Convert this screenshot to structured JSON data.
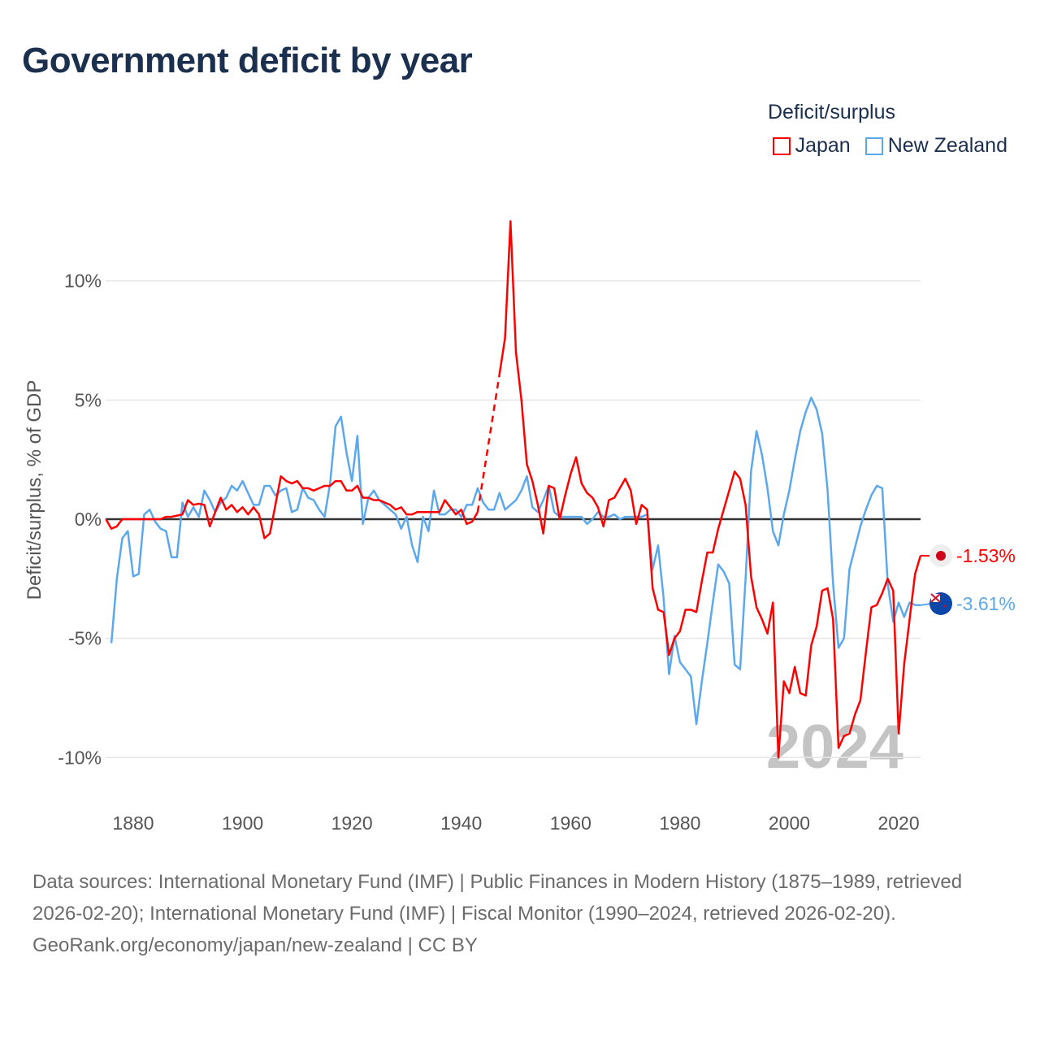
{
  "title": "Government deficit by year",
  "legend_title": "Deficit/surplus",
  "footer": {
    "sources": "Data sources: International Monetary Fund (IMF) | Public Finances in Modern History (1875–1989, retrieved 2026-02-20); International Monetary Fund (IMF) | Fiscal Monitor (1990–2024, retrieved 2026-02-20).",
    "credit": "GeoRank.org/economy/japan/new-zealand | CC BY"
  },
  "chart_data": {
    "type": "line",
    "title": "Government deficit by year",
    "ylabel": "Deficit/surplus, % of GDP",
    "xlabel": "",
    "xlim": [
      1875,
      2024
    ],
    "ylim": [
      -11.5,
      13
    ],
    "yticks": [
      10,
      5,
      0,
      -5,
      -10
    ],
    "ytick_labels": [
      "10%",
      "5%",
      "0%",
      "-5%",
      "-10%"
    ],
    "xticks": [
      1880,
      1900,
      1920,
      1940,
      1960,
      1980,
      2000,
      2020
    ],
    "xtick_labels": [
      "1880",
      "1900",
      "1920",
      "1940",
      "1960",
      "1980",
      "2000",
      "2020"
    ],
    "current_year_label": "2024",
    "grid": true,
    "legend_position": "top-right",
    "series": [
      {
        "name": "Japan",
        "color": "#ff0000",
        "start_year": 1875,
        "end_label": "-1.53%",
        "flag": "japan-flag",
        "values": [
          0,
          -0.4,
          -0.3,
          0,
          0,
          0,
          0,
          0,
          0,
          0,
          0,
          0.1,
          0.1,
          0.15,
          0.2,
          0.8,
          0.6,
          0.65,
          0.6,
          -0.3,
          0.3,
          0.9,
          0.4,
          0.6,
          0.3,
          0.5,
          0.2,
          0.5,
          0.2,
          -0.8,
          -0.6,
          0.6,
          1.8,
          1.6,
          1.5,
          1.6,
          1.3,
          1.3,
          1.2,
          1.3,
          1.4,
          1.4,
          1.6,
          1.6,
          1.2,
          1.2,
          1.4,
          0.9,
          0.9,
          0.8,
          0.8,
          0.7,
          0.6,
          0.4,
          0.5,
          0.2,
          0.2,
          0.3,
          0.3,
          0.3,
          0.3,
          0.3,
          0.8,
          0.5,
          0.2,
          0.4,
          -0.2,
          -0.1,
          0.3,
          null,
          null,
          null,
          6.1,
          7.6,
          12.5,
          7.0,
          5.0,
          2.3,
          1.6,
          0.6,
          -0.6,
          1.4,
          1.3,
          0,
          1.0,
          1.9,
          2.6,
          1.5,
          1.1,
          0.9,
          0.5,
          -0.3,
          0.8,
          0.9,
          1.3,
          1.7,
          1.2,
          -0.2,
          0.6,
          0.4,
          -2.9,
          -3.8,
          -3.9,
          -5.7,
          -5.0,
          -4.7,
          -3.8,
          -3.8,
          -3.9,
          -2.6,
          -1.4,
          -1.4,
          -0.4,
          0.4,
          1.2,
          2.0,
          1.7,
          0.6,
          -2.4,
          -3.7,
          -4.2,
          -4.8,
          -3.5,
          -10.0,
          -6.8,
          -7.3,
          -6.2,
          -7.3,
          -7.4,
          -5.3,
          -4.5,
          -3.0,
          -2.9,
          -4.2,
          -9.6,
          -9.1,
          -9.0,
          -8.2,
          -7.6,
          -5.6,
          -3.7,
          -3.6,
          -3.1,
          -2.5,
          -3.0,
          -9.0,
          -6.1,
          -4.2,
          -2.3,
          -1.53
        ]
      },
      {
        "name": "New Zealand",
        "color": "#5ba8ec",
        "start_year": 1876,
        "end_label": "-3.61%",
        "flag": "new-zealand-flag",
        "values": [
          -5.2,
          -2.5,
          -0.8,
          -0.5,
          -2.4,
          -2.3,
          0.2,
          0.4,
          -0.1,
          -0.4,
          -0.5,
          -1.6,
          -1.6,
          0.7,
          0.1,
          0.5,
          0.1,
          1.2,
          0.8,
          0.3,
          0.7,
          0.9,
          1.4,
          1.2,
          1.6,
          1.1,
          0.6,
          0.6,
          1.4,
          1.4,
          1.0,
          1.2,
          1.3,
          0.3,
          0.4,
          1.3,
          0.9,
          0.8,
          0.4,
          0.1,
          1.5,
          3.9,
          4.3,
          2.8,
          1.6,
          3.5,
          -0.2,
          0.9,
          1.2,
          0.8,
          0.6,
          0.4,
          0.2,
          -0.4,
          0.1,
          -1.1,
          -1.8,
          0.1,
          -0.5,
          1.2,
          0.2,
          0.2,
          0.4,
          0.4,
          0.1,
          0.6,
          0.6,
          1.3,
          0.7,
          0.4,
          0.4,
          1.1,
          0.4,
          0.6,
          0.8,
          1.2,
          1.8,
          0.5,
          0.3,
          0.8,
          1.4,
          0.3,
          0.1,
          0.1,
          0.1,
          0.1,
          0.1,
          -0.2,
          0,
          0.3,
          0.1,
          0.1,
          0.2,
          0,
          0.1,
          0.1,
          0.1,
          0.1,
          0.2,
          -2.1,
          -1.1,
          -3.3,
          -6.5,
          -4.9,
          -6.0,
          -6.3,
          -6.6,
          -8.6,
          -6.8,
          -5.2,
          -3.5,
          -1.9,
          -2.2,
          -2.7,
          -6.1,
          -6.3,
          -2.5,
          2.0,
          3.7,
          2.7,
          1.3,
          -0.5,
          -1.1,
          0.2,
          1.2,
          2.5,
          3.7,
          4.5,
          5.1,
          4.6,
          3.6,
          1.2,
          -2.7,
          -5.4,
          -5.0,
          -2.1,
          -1.2,
          -0.3,
          0.4,
          1.0,
          1.4,
          1.3,
          -2.7,
          -4.3,
          -3.5,
          -4.1,
          -3.5,
          -3.6,
          -3.61
        ]
      }
    ]
  }
}
